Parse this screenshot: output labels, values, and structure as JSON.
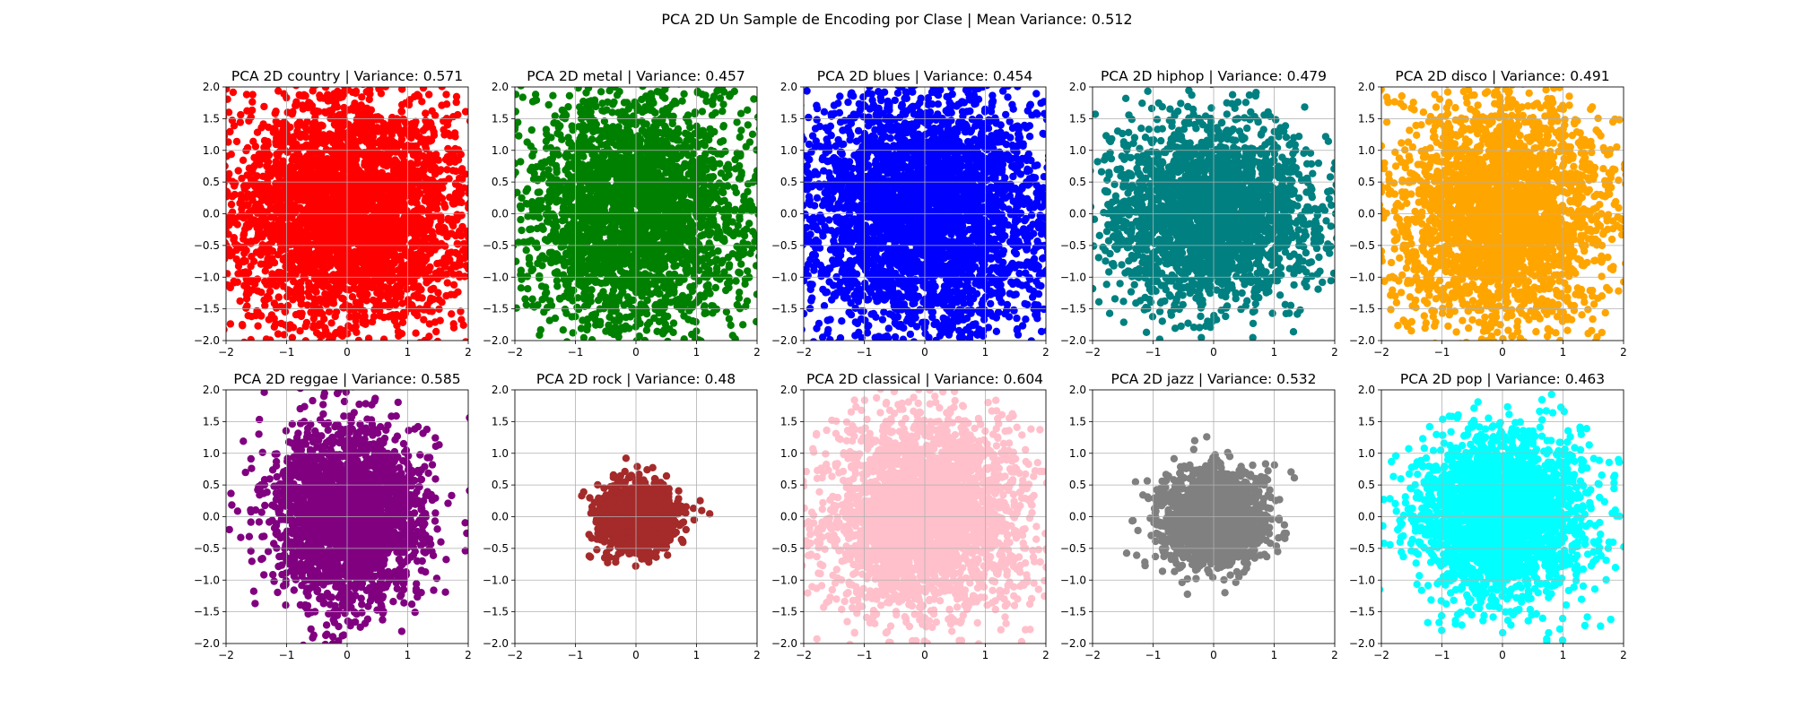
{
  "figure": {
    "suptitle": "PCA 2D Un Sample de Encoding por Clase | Mean Variance: 0.512"
  },
  "chart_data": [
    {
      "type": "scatter",
      "title": "PCA 2D country | Variance: 0.571",
      "color": "#ff0000",
      "xlim": [
        -2,
        2
      ],
      "ylim": [
        -2,
        2
      ],
      "xticks": [
        "−2",
        "−1",
        "0",
        "1",
        "2"
      ],
      "yticks": [
        "−2.0",
        "−1.5",
        "−1.0",
        "−0.5",
        "0.0",
        "0.5",
        "1.0",
        "1.5",
        "2.0"
      ],
      "grid": true,
      "cloud": {
        "center": [
          0,
          0
        ],
        "spread": [
          2.2,
          1.9
        ],
        "count": 3500
      }
    },
    {
      "type": "scatter",
      "title": "PCA 2D metal | Variance: 0.457",
      "color": "#008000",
      "xlim": [
        -2,
        2
      ],
      "ylim": [
        -2,
        2
      ],
      "xticks": [
        "−2",
        "−1",
        "0",
        "1",
        "2"
      ],
      "yticks": [
        "−2.0",
        "−1.5",
        "−1.0",
        "−0.5",
        "0.0",
        "0.5",
        "1.0",
        "1.5",
        "2.0"
      ],
      "grid": true,
      "cloud": {
        "center": [
          0,
          0
        ],
        "spread": [
          1.9,
          1.9
        ],
        "count": 3000
      }
    },
    {
      "type": "scatter",
      "title": "PCA 2D blues | Variance: 0.454",
      "color": "#0000ff",
      "xlim": [
        -2,
        2
      ],
      "ylim": [
        -2,
        2
      ],
      "xticks": [
        "−2",
        "−1",
        "0",
        "1",
        "2"
      ],
      "yticks": [
        "−2.0",
        "−1.5",
        "−1.0",
        "−0.5",
        "0.0",
        "0.5",
        "1.0",
        "1.5",
        "2.0"
      ],
      "grid": true,
      "cloud": {
        "center": [
          0,
          0
        ],
        "spread": [
          2.1,
          2.1
        ],
        "count": 3500
      }
    },
    {
      "type": "scatter",
      "title": "PCA 2D hiphop | Variance: 0.479",
      "color": "#008080",
      "xlim": [
        -2,
        2
      ],
      "ylim": [
        -2,
        2
      ],
      "xticks": [
        "−2",
        "−1",
        "0",
        "1",
        "2"
      ],
      "yticks": [
        "−2.0",
        "−1.5",
        "−1.0",
        "−0.5",
        "0.0",
        "0.5",
        "1.0",
        "1.5",
        "2.0"
      ],
      "grid": true,
      "cloud": {
        "center": [
          0,
          0
        ],
        "spread": [
          1.7,
          1.4
        ],
        "count": 2500
      }
    },
    {
      "type": "scatter",
      "title": "PCA 2D disco | Variance: 0.491",
      "color": "#ffa500",
      "xlim": [
        -2,
        2
      ],
      "ylim": [
        -2,
        2
      ],
      "xticks": [
        "−2",
        "−1",
        "0",
        "1",
        "2"
      ],
      "yticks": [
        "−2.0",
        "−1.5",
        "−1.0",
        "−0.5",
        "0.0",
        "0.5",
        "1.0",
        "1.5",
        "2.0"
      ],
      "grid": true,
      "cloud": {
        "center": [
          0,
          0
        ],
        "spread": [
          1.8,
          1.9
        ],
        "count": 2800
      }
    },
    {
      "type": "scatter",
      "title": "PCA 2D reggae | Variance: 0.585",
      "color": "#800080",
      "xlim": [
        -2,
        2
      ],
      "ylim": [
        -2,
        2
      ],
      "xticks": [
        "−2",
        "−1",
        "0",
        "1",
        "2"
      ],
      "yticks": [
        "−2.0",
        "−1.5",
        "−1.0",
        "−0.5",
        "0.0",
        "0.5",
        "1.0",
        "1.5",
        "2.0"
      ],
      "grid": true,
      "cloud": {
        "center": [
          0,
          0
        ],
        "spread": [
          1.2,
          1.4
        ],
        "count": 2500
      }
    },
    {
      "type": "scatter",
      "title": "PCA 2D rock | Variance: 0.48",
      "color": "#a52a2a",
      "xlim": [
        -2,
        2
      ],
      "ylim": [
        -2,
        2
      ],
      "xticks": [
        "−2",
        "−1",
        "0",
        "1",
        "2"
      ],
      "yticks": [
        "−2.0",
        "−1.5",
        "−1.0",
        "−0.5",
        "0.0",
        "0.5",
        "1.0",
        "1.5",
        "2.0"
      ],
      "grid": true,
      "cloud": {
        "center": [
          0,
          0
        ],
        "spread": [
          0.6,
          0.5
        ],
        "count": 1500
      }
    },
    {
      "type": "scatter",
      "title": "PCA 2D classical | Variance: 0.604",
      "color": "#ffc0cb",
      "xlim": [
        -2,
        2
      ],
      "ylim": [
        -2,
        2
      ],
      "xticks": [
        "−2",
        "−1",
        "0",
        "1",
        "2"
      ],
      "yticks": [
        "−2.0",
        "−1.5",
        "−1.0",
        "−0.5",
        "0.0",
        "0.5",
        "1.0",
        "1.5",
        "2.0"
      ],
      "grid": true,
      "cloud": {
        "center": [
          0,
          0
        ],
        "spread": [
          1.7,
          1.6
        ],
        "count": 2800
      }
    },
    {
      "type": "scatter",
      "title": "PCA 2D jazz | Variance: 0.532",
      "color": "#808080",
      "xlim": [
        -2,
        2
      ],
      "ylim": [
        -2,
        2
      ],
      "xticks": [
        "−2",
        "−1",
        "0",
        "1",
        "2"
      ],
      "yticks": [
        "−2.0",
        "−1.5",
        "−1.0",
        "−0.5",
        "0.0",
        "0.5",
        "1.0",
        "1.5",
        "2.0"
      ],
      "grid": true,
      "cloud": {
        "center": [
          0,
          0
        ],
        "spread": [
          0.85,
          0.75
        ],
        "count": 1800
      }
    },
    {
      "type": "scatter",
      "title": "PCA 2D pop | Variance: 0.463",
      "color": "#00ffff",
      "xlim": [
        -2,
        2
      ],
      "ylim": [
        -2,
        2
      ],
      "xticks": [
        "−2",
        "−1",
        "0",
        "1",
        "2"
      ],
      "yticks": [
        "−2.0",
        "−1.5",
        "−1.0",
        "−0.5",
        "0.0",
        "0.5",
        "1.0",
        "1.5",
        "2.0"
      ],
      "grid": true,
      "cloud": {
        "center": [
          0,
          0
        ],
        "spread": [
          1.4,
          1.3
        ],
        "count": 2500
      }
    }
  ]
}
